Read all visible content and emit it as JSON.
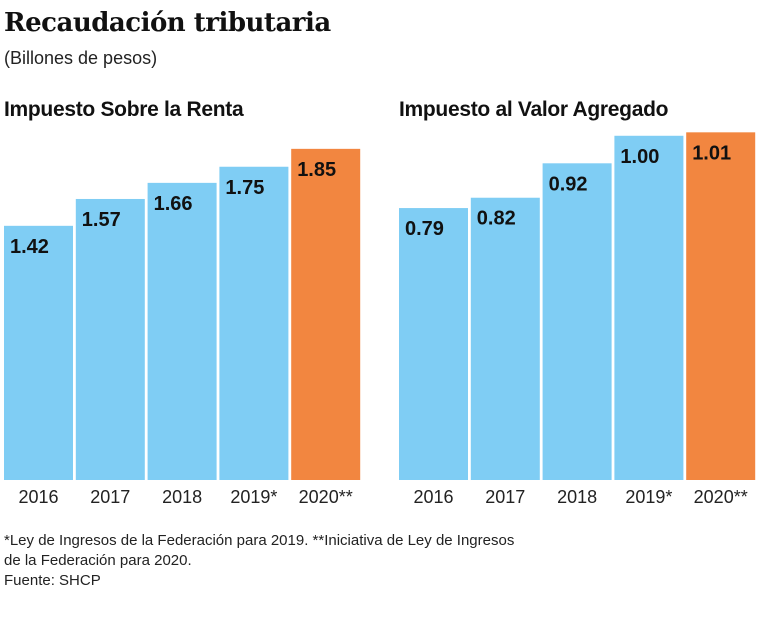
{
  "title": "Recaudación tributaria",
  "subtitle": "(Billones de pesos)",
  "colors": {
    "regular": "#7fcdf4",
    "highlight": "#f28640"
  },
  "chart_data": [
    {
      "type": "bar",
      "title": "Impuesto Sobre la Renta",
      "categories": [
        "2016",
        "2017",
        "2018",
        "2019*",
        "2020**"
      ],
      "values": [
        1.42,
        1.57,
        1.66,
        1.75,
        1.85
      ],
      "labels": [
        "1.42",
        "1.57",
        "1.66",
        "1.75",
        "1.85"
      ],
      "highlight": [
        false,
        false,
        false,
        false,
        true
      ],
      "ylim": [
        0,
        2.0
      ],
      "grid": false
    },
    {
      "type": "bar",
      "title": "Impuesto al Valor Agregado",
      "categories": [
        "2016",
        "2017",
        "2018",
        "2019*",
        "2020**"
      ],
      "values": [
        0.79,
        0.82,
        0.92,
        1.0,
        1.01
      ],
      "labels": [
        "0.79",
        "0.82",
        "0.92",
        "1.00",
        "1.01"
      ],
      "highlight": [
        false,
        false,
        false,
        false,
        true
      ],
      "ylim": [
        0,
        1.04
      ],
      "grid": false
    }
  ],
  "footnotes": [
    "*Ley de Ingresos de la Federación para 2019. **Iniciativa de Ley de Ingresos",
    "de la Federación para 2020.",
    "Fuente: SHCP"
  ]
}
